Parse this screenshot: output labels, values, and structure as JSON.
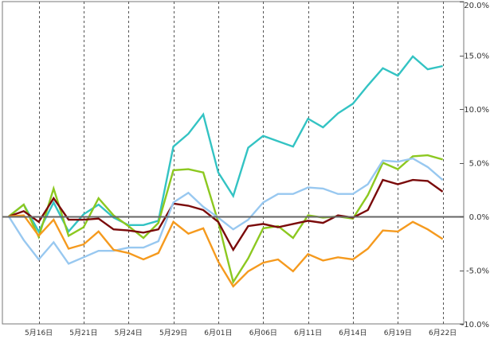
{
  "chart_data": {
    "type": "line",
    "title": "",
    "xlabel": "",
    "ylabel": "",
    "x_tick_labels": [
      "5月16日",
      "5月21日",
      "5月24日",
      "5月29日",
      "6月01日",
      "6月06日",
      "6月11日",
      "6月14日",
      "6月19日",
      "6月22日"
    ],
    "y_tick_labels": [
      "20.0%",
      "15.0%",
      "10.0%",
      "5.0%",
      "0.0%",
      "-5.0%",
      "-10.0%"
    ],
    "y_tick_values": [
      20,
      15,
      10,
      5,
      0,
      -5,
      -10
    ],
    "ylim": [
      -10,
      20
    ],
    "grid": "vertical dashed",
    "zero_line": true,
    "x_point_count": 30,
    "series": [
      {
        "color": "#33C3C3",
        "values": [
          0,
          1.1,
          -1.4,
          1.3,
          -1.4,
          0.2,
          1.1,
          -0.1,
          -0.8,
          -0.8,
          -0.4,
          6.5,
          7.7,
          9.5,
          4.1,
          1.9,
          6.4,
          7.5,
          7.0,
          6.5,
          9.1,
          8.3,
          9.6,
          10.5,
          12.2,
          13.8,
          13.1,
          14.9,
          13.7,
          14.0
        ]
      },
      {
        "color": "#8CC820",
        "values": [
          0,
          1.1,
          -1.9,
          2.6,
          -1.8,
          -1.0,
          1.7,
          0.1,
          -0.9,
          -2.0,
          -0.6,
          4.3,
          4.4,
          4.1,
          -0.5,
          -6.1,
          -3.9,
          -1.1,
          -0.9,
          -2.0,
          0.1,
          -0.1,
          0.0,
          -0.2,
          2.0,
          5.0,
          4.4,
          5.6,
          5.7,
          5.3
        ]
      },
      {
        "color": "#7A0A0A",
        "values": [
          0,
          0.5,
          -0.5,
          1.7,
          -0.3,
          -0.3,
          -0.2,
          -1.2,
          -1.3,
          -1.5,
          -1.2,
          1.2,
          1.0,
          0.6,
          -0.5,
          -3.1,
          -0.9,
          -0.7,
          -1.0,
          -0.7,
          -0.4,
          -0.6,
          0.1,
          -0.1,
          0.6,
          3.4,
          3.0,
          3.4,
          3.3,
          2.3
        ]
      },
      {
        "color": "#98C8F0",
        "values": [
          0,
          -2.2,
          -4.0,
          -2.4,
          -4.4,
          -3.8,
          -3.2,
          -3.2,
          -2.9,
          -2.9,
          -2.3,
          1.3,
          2.2,
          0.9,
          -0.1,
          -1.2,
          -0.3,
          1.3,
          2.1,
          2.1,
          2.7,
          2.6,
          2.1,
          2.1,
          3.0,
          5.2,
          5.1,
          5.4,
          4.6,
          3.4
        ]
      },
      {
        "color": "#F59A1E",
        "values": [
          0,
          0.1,
          -1.8,
          -0.3,
          -3.0,
          -2.6,
          -1.4,
          -3.1,
          -3.4,
          -4.0,
          -3.4,
          -0.5,
          -1.6,
          -1.1,
          -4.2,
          -6.5,
          -5.1,
          -4.3,
          -4.0,
          -5.1,
          -3.5,
          -4.1,
          -3.8,
          -4.0,
          -3.0,
          -1.3,
          -1.4,
          -0.5,
          -1.2,
          -2.1
        ]
      }
    ]
  }
}
